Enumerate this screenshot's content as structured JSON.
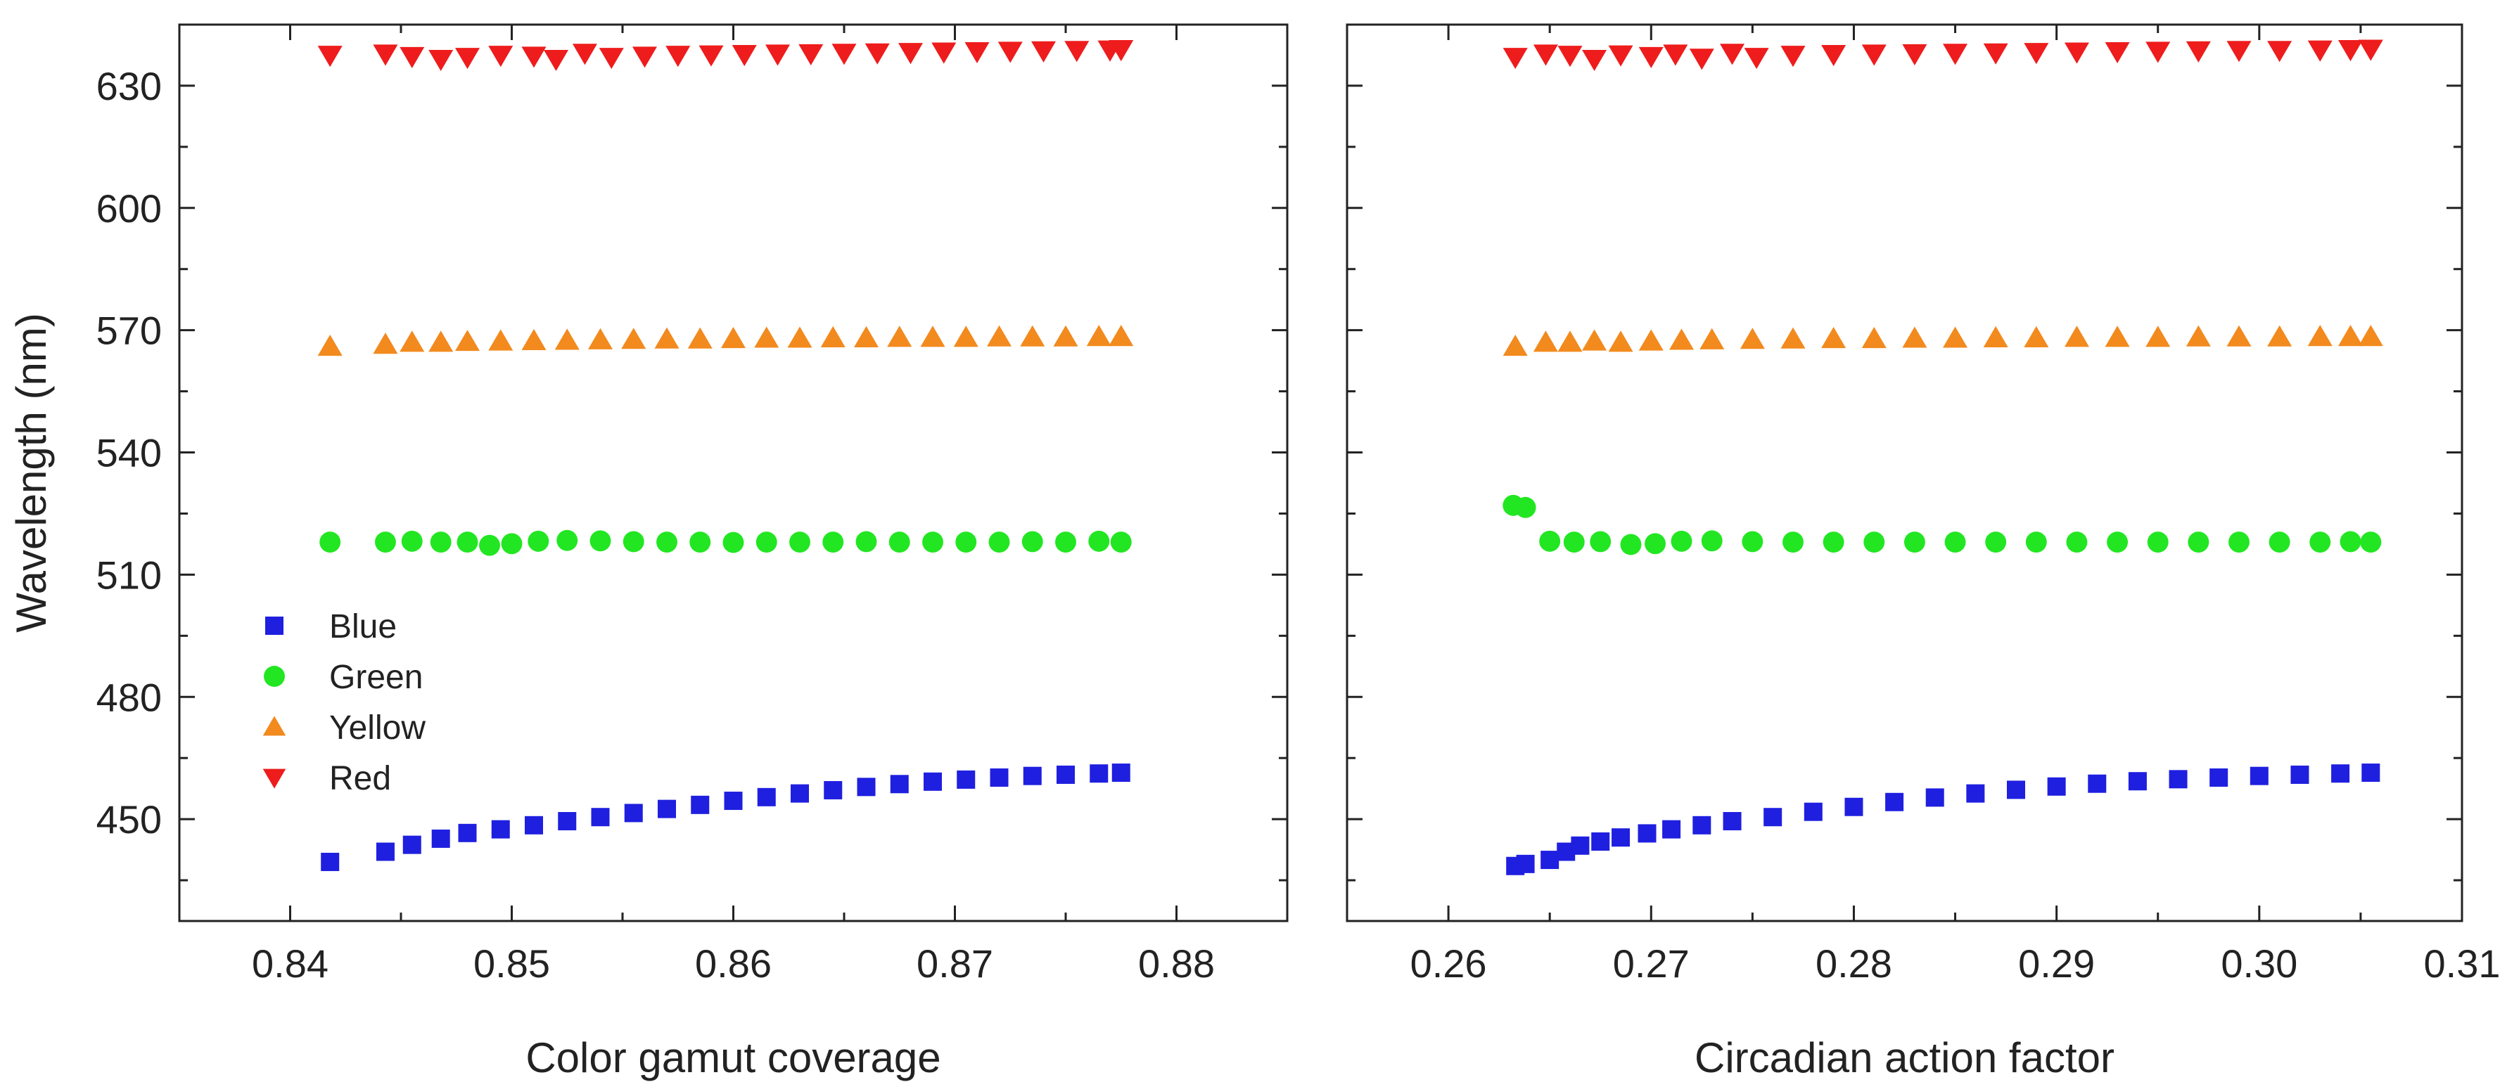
{
  "chart_data": [
    {
      "type": "scatter",
      "title": "",
      "xlabel": "Color gamut coverage",
      "ylabel": "Wavelength (nm)",
      "xlim": [
        0.835,
        0.885
      ],
      "ylim": [
        425,
        645
      ],
      "xticks": [
        0.84,
        0.85,
        0.86,
        0.87,
        0.88
      ],
      "yticks": [
        450,
        480,
        510,
        540,
        570,
        600,
        630
      ],
      "xtick_labels": [
        "0.84",
        "0.85",
        "0.86",
        "0.87",
        "0.88"
      ],
      "ytick_labels": [
        "450",
        "480",
        "510",
        "540",
        "570",
        "600",
        "630"
      ],
      "grid": false,
      "legend": {
        "position": "lower-left",
        "entries": [
          "Blue",
          "Green",
          "Yellow",
          "Red"
        ]
      },
      "series": [
        {
          "name": "Blue",
          "color": "#1f1fe0",
          "marker": "square",
          "x": [
            0.8418,
            0.8443,
            0.8455,
            0.8468,
            0.848,
            0.8495,
            0.851,
            0.8525,
            0.854,
            0.8555,
            0.857,
            0.8585,
            0.86,
            0.8615,
            0.863,
            0.8645,
            0.866,
            0.8675,
            0.869,
            0.8705,
            0.872,
            0.8735,
            0.875,
            0.8765,
            0.8775
          ],
          "y": [
            439.5,
            442.0,
            443.7,
            445.2,
            446.6,
            447.5,
            448.5,
            449.5,
            450.5,
            451.5,
            452.5,
            453.5,
            454.5,
            455.4,
            456.3,
            457.1,
            457.9,
            458.6,
            459.2,
            459.7,
            460.2,
            460.6,
            460.9,
            461.2,
            461.4
          ]
        },
        {
          "name": "Green",
          "color": "#22e622",
          "marker": "circle",
          "x": [
            0.8418,
            0.8443,
            0.8455,
            0.8468,
            0.848,
            0.849,
            0.85,
            0.8512,
            0.8525,
            0.854,
            0.8555,
            0.857,
            0.8585,
            0.86,
            0.8615,
            0.863,
            0.8645,
            0.866,
            0.8675,
            0.869,
            0.8705,
            0.872,
            0.8735,
            0.875,
            0.8765,
            0.8775
          ],
          "y": [
            518.0,
            518.0,
            518.2,
            518.0,
            518.0,
            517.2,
            517.6,
            518.2,
            518.4,
            518.3,
            518.1,
            518.0,
            518.0,
            517.9,
            518.0,
            518.0,
            518.0,
            518.1,
            518.0,
            518.0,
            518.0,
            518.0,
            518.1,
            518.0,
            518.2,
            518.0
          ]
        },
        {
          "name": "Yellow",
          "color": "#f28a1e",
          "marker": "triangle-up",
          "x": [
            0.8418,
            0.8443,
            0.8455,
            0.8468,
            0.848,
            0.8495,
            0.851,
            0.8525,
            0.854,
            0.8555,
            0.857,
            0.8585,
            0.86,
            0.8615,
            0.863,
            0.8645,
            0.866,
            0.8675,
            0.869,
            0.8705,
            0.872,
            0.8735,
            0.875,
            0.8765,
            0.8775
          ],
          "y": [
            566.0,
            566.5,
            567.0,
            567.0,
            567.2,
            567.3,
            567.4,
            567.5,
            567.6,
            567.7,
            567.8,
            567.8,
            567.9,
            568.0,
            568.0,
            568.1,
            568.1,
            568.2,
            568.2,
            568.2,
            568.3,
            568.3,
            568.3,
            568.4,
            568.4
          ]
        },
        {
          "name": "Red",
          "color": "#ee1c1c",
          "marker": "triangle-down",
          "x": [
            0.8418,
            0.8443,
            0.8455,
            0.8468,
            0.848,
            0.8495,
            0.851,
            0.852,
            0.8533,
            0.8545,
            0.856,
            0.8575,
            0.859,
            0.8605,
            0.862,
            0.8635,
            0.865,
            0.8665,
            0.868,
            0.8695,
            0.871,
            0.8725,
            0.874,
            0.8755,
            0.877,
            0.8775
          ],
          "y": [
            637.5,
            637.8,
            637.2,
            636.5,
            637.0,
            637.5,
            637.3,
            636.5,
            638.0,
            637.0,
            637.3,
            637.5,
            637.6,
            637.7,
            637.8,
            637.9,
            638.0,
            638.1,
            638.2,
            638.3,
            638.4,
            638.5,
            638.6,
            638.7,
            638.8,
            638.9
          ]
        }
      ]
    },
    {
      "type": "scatter",
      "title": "",
      "xlabel": "Circadian action factor",
      "ylabel": "",
      "xlim": [
        0.255,
        0.31
      ],
      "ylim": [
        425,
        645
      ],
      "xticks": [
        0.26,
        0.27,
        0.28,
        0.29,
        0.3,
        0.31
      ],
      "yticks": [
        450,
        480,
        510,
        540,
        570,
        600,
        630
      ],
      "xtick_labels": [
        "0.26",
        "0.27",
        "0.28",
        "0.29",
        "0.30",
        "0.31"
      ],
      "ytick_labels": [],
      "grid": false,
      "series": [
        {
          "name": "Blue",
          "color": "#1f1fe0",
          "marker": "square",
          "x": [
            0.2633,
            0.2638,
            0.265,
            0.2658,
            0.2665,
            0.2675,
            0.2685,
            0.2698,
            0.271,
            0.2725,
            0.274,
            0.276,
            0.278,
            0.28,
            0.282,
            0.284,
            0.286,
            0.288,
            0.29,
            0.292,
            0.294,
            0.296,
            0.298,
            0.3,
            0.302,
            0.304,
            0.3055
          ],
          "y": [
            438.5,
            439.0,
            440.0,
            442.0,
            443.5,
            444.5,
            445.5,
            446.5,
            447.5,
            448.5,
            449.5,
            450.5,
            451.8,
            453.0,
            454.2,
            455.3,
            456.3,
            457.2,
            458.0,
            458.7,
            459.3,
            459.8,
            460.2,
            460.6,
            460.9,
            461.2,
            461.4
          ]
        },
        {
          "name": "Green",
          "color": "#22e622",
          "marker": "circle",
          "x": [
            0.2632,
            0.2638,
            0.265,
            0.2662,
            0.2675,
            0.269,
            0.2702,
            0.2715,
            0.273,
            0.275,
            0.277,
            0.279,
            0.281,
            0.283,
            0.285,
            0.287,
            0.289,
            0.291,
            0.293,
            0.295,
            0.297,
            0.299,
            0.301,
            0.303,
            0.3045,
            0.3055
          ],
          "y": [
            527.0,
            526.5,
            518.2,
            518.0,
            518.1,
            517.4,
            517.6,
            518.2,
            518.3,
            518.1,
            518.0,
            518.0,
            518.0,
            518.0,
            518.0,
            518.0,
            518.0,
            518.0,
            518.0,
            518.0,
            518.0,
            518.0,
            518.0,
            518.0,
            518.1,
            518.0
          ]
        },
        {
          "name": "Yellow",
          "color": "#f28a1e",
          "marker": "triangle-up",
          "x": [
            0.2633,
            0.2648,
            0.266,
            0.2672,
            0.2685,
            0.27,
            0.2715,
            0.273,
            0.275,
            0.277,
            0.279,
            0.281,
            0.283,
            0.285,
            0.287,
            0.289,
            0.291,
            0.293,
            0.295,
            0.297,
            0.299,
            0.301,
            0.303,
            0.3045,
            0.3055
          ],
          "y": [
            566.0,
            567.0,
            567.0,
            567.3,
            567.0,
            567.3,
            567.5,
            567.6,
            567.7,
            567.8,
            567.9,
            567.9,
            568.0,
            568.0,
            568.1,
            568.1,
            568.2,
            568.2,
            568.2,
            568.3,
            568.3,
            568.3,
            568.4,
            568.4,
            568.4
          ]
        },
        {
          "name": "Red",
          "color": "#ee1c1c",
          "marker": "triangle-down",
          "x": [
            0.2633,
            0.2648,
            0.266,
            0.2672,
            0.2685,
            0.27,
            0.2712,
            0.2725,
            0.274,
            0.2752,
            0.277,
            0.279,
            0.281,
            0.283,
            0.285,
            0.287,
            0.289,
            0.291,
            0.293,
            0.295,
            0.297,
            0.299,
            0.301,
            0.303,
            0.3045,
            0.3055
          ],
          "y": [
            637.0,
            637.8,
            637.5,
            636.5,
            637.6,
            637.2,
            637.8,
            636.8,
            638.0,
            637.0,
            637.5,
            637.7,
            637.8,
            637.9,
            638.0,
            638.1,
            638.2,
            638.3,
            638.4,
            638.5,
            638.6,
            638.7,
            638.7,
            638.8,
            638.9,
            639.0
          ]
        }
      ]
    }
  ]
}
